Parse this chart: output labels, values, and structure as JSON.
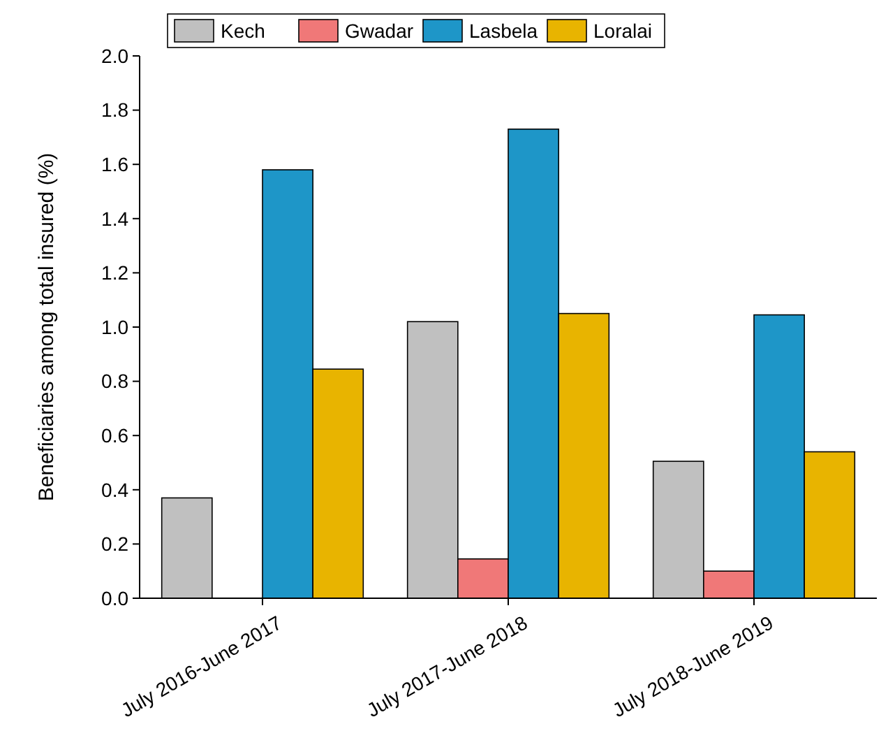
{
  "chart_data": {
    "type": "bar",
    "ylabel": "Beneficiaries among total insured (%)",
    "categories": [
      "July 2016-June 2017",
      "July 2017-June 2018",
      "July 2018-June 2019"
    ],
    "series": [
      {
        "name": "Kech",
        "color": "#c0c0c0",
        "values": [
          0.37,
          1.02,
          0.505
        ]
      },
      {
        "name": "Gwadar",
        "color": "#f07878",
        "values": [
          0,
          0.145,
          0.1
        ]
      },
      {
        "name": "Lasbela",
        "color": "#1e96c8",
        "values": [
          1.58,
          1.73,
          1.045
        ]
      },
      {
        "name": "Loralai",
        "color": "#e8b400",
        "values": [
          0.845,
          1.05,
          0.54
        ]
      }
    ],
    "ylim": [
      0,
      2
    ],
    "yticks": [
      {
        "value": 0,
        "label": "0.0"
      },
      {
        "value": 0.2,
        "label": "0.2"
      },
      {
        "value": 0.4,
        "label": "0.4"
      },
      {
        "value": 0.6,
        "label": "0.6"
      },
      {
        "value": 0.8,
        "label": "0.8"
      },
      {
        "value": 1,
        "label": "1.0"
      },
      {
        "value": 1.2,
        "label": "1.2"
      },
      {
        "value": 1.4,
        "label": "1.4"
      },
      {
        "value": 1.6,
        "label": "1.6"
      },
      {
        "value": 1.8,
        "label": "1.8"
      },
      {
        "value": 2,
        "label": "2.0"
      }
    ],
    "legend": "top",
    "grid": false
  }
}
